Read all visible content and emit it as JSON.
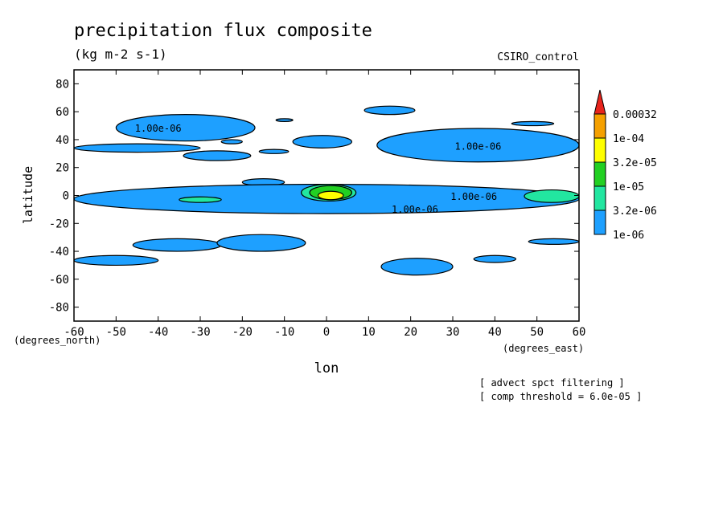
{
  "chart_data": {
    "type": "contour",
    "title": "precipitation flux composite",
    "subtitle": "(kg m-2 s-1)",
    "model_label": "CSIRO_control",
    "xlabel": "lon",
    "ylabel": "latitude",
    "x_unit_label": "(degrees_east)",
    "y_unit_label": "(degrees_north)",
    "xlim": [
      -60,
      60
    ],
    "ylim": [
      -90,
      90
    ],
    "x_ticks": [
      "-60",
      "-50",
      "-40",
      "-30",
      "-20",
      "-10",
      "0",
      "10",
      "20",
      "30",
      "40",
      "50",
      "60"
    ],
    "y_ticks": [
      "80",
      "60",
      "40",
      "20",
      "0",
      "-20",
      "-40",
      "-60",
      "-80"
    ],
    "contour_labels": [
      {
        "text": "1.00e-06",
        "lon": -40,
        "lat": 48
      },
      {
        "text": "1.00e-06",
        "lon": 36,
        "lat": 35
      },
      {
        "text": "1.00e-06",
        "lon": 35,
        "lat": -1
      },
      {
        "text": "1.00e-06",
        "lon": 21,
        "lat": -10
      }
    ],
    "colorbar": {
      "levels": [
        "0.00032",
        "1e-04",
        "3.2e-05",
        "1e-05",
        "3.2e-06",
        "1e-06"
      ],
      "colors": [
        "#e8241c",
        "#f5a000",
        "#ffff00",
        "#22d022",
        "#22e6a0",
        "#1ea0ff"
      ]
    },
    "notes": [
      "[ advect spct filtering ]",
      "[ comp threshold = 6.0e-05 ]"
    ],
    "regions": [
      {
        "level": "1e-06",
        "lon": [
          -60,
          -30
        ],
        "lat": [
          31,
          37
        ]
      },
      {
        "level": "1e-06",
        "lon": [
          -50,
          -17
        ],
        "lat": [
          39,
          58
        ]
      },
      {
        "level": "1e-06",
        "lon": [
          -25,
          -20
        ],
        "lat": [
          37,
          40
        ]
      },
      {
        "level": "1e-06",
        "lon": [
          -12,
          -8
        ],
        "lat": [
          53,
          55
        ]
      },
      {
        "level": "1e-06",
        "lon": [
          -16,
          -9
        ],
        "lat": [
          30,
          33
        ]
      },
      {
        "level": "1e-06",
        "lon": [
          -34,
          -18
        ],
        "lat": [
          25,
          32
        ]
      },
      {
        "level": "1e-06",
        "lon": [
          -8,
          6
        ],
        "lat": [
          34,
          43
        ]
      },
      {
        "level": "1e-06",
        "lon": [
          9,
          21
        ],
        "lat": [
          58,
          64
        ]
      },
      {
        "level": "1e-06",
        "lon": [
          12,
          60
        ],
        "lat": [
          24,
          48
        ]
      },
      {
        "level": "1e-06",
        "lon": [
          44,
          54
        ],
        "lat": [
          50,
          53
        ]
      },
      {
        "level": "1e-06",
        "lon": [
          -20,
          -10
        ],
        "lat": [
          7,
          12
        ]
      },
      {
        "level": "1e-06",
        "lon": [
          -60,
          60
        ],
        "lat": [
          -13,
          8
        ]
      },
      {
        "level": "1e-06",
        "lon": [
          -46,
          -25
        ],
        "lat": [
          -40,
          -31
        ]
      },
      {
        "level": "1e-06",
        "lon": [
          -26,
          -5
        ],
        "lat": [
          -40,
          -28
        ]
      },
      {
        "level": "1e-06",
        "lon": [
          -60,
          -40
        ],
        "lat": [
          -50,
          -43
        ]
      },
      {
        "level": "1e-06",
        "lon": [
          13,
          30
        ],
        "lat": [
          -57,
          -45
        ]
      },
      {
        "level": "1e-06",
        "lon": [
          35,
          45
        ],
        "lat": [
          -48,
          -43
        ]
      },
      {
        "level": "1e-06",
        "lon": [
          48,
          60
        ],
        "lat": [
          -35,
          -31
        ]
      },
      {
        "level": "3.2e-06",
        "lon": [
          47,
          60
        ],
        "lat": [
          -5,
          4
        ]
      },
      {
        "level": "3.2e-06",
        "lon": [
          -35,
          -25
        ],
        "lat": [
          -5,
          -1
        ]
      },
      {
        "level": "3.2e-06",
        "lon": [
          -6,
          7
        ],
        "lat": [
          -4,
          8
        ]
      },
      {
        "level": "1e-05",
        "lon": [
          -4,
          6
        ],
        "lat": [
          -3,
          7
        ]
      },
      {
        "level": "3.2e-05",
        "lon": [
          -2,
          4
        ],
        "lat": [
          -3,
          3
        ]
      }
    ]
  }
}
